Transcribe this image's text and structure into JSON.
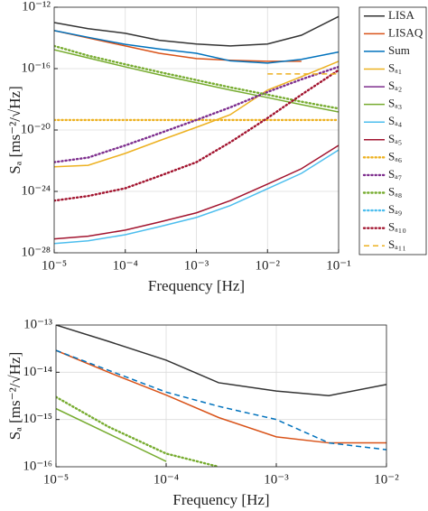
{
  "chart_data": [
    {
      "type": "line",
      "xlabel": "Frequency [Hz]",
      "ylabel": "Sₐ [ms⁻²/√Hz]",
      "xscale": "log",
      "yscale": "log",
      "grid": true,
      "legend": "outside right",
      "xlim": [
        1e-05,
        0.1
      ],
      "ylim": [
        1e-28,
        1e-12
      ],
      "xticks": [
        {
          "value": 1e-05,
          "label": "10⁻⁵"
        },
        {
          "value": 0.0001,
          "label": "10⁻⁴"
        },
        {
          "value": 0.001,
          "label": "10⁻³"
        },
        {
          "value": 0.01,
          "label": "10⁻²"
        },
        {
          "value": 0.1,
          "label": "10⁻¹"
        }
      ],
      "yticks": [
        {
          "value": 1e-28,
          "label": "10⁻²⁸"
        },
        {
          "value": 1e-24,
          "label": "10⁻²⁴"
        },
        {
          "value": 1e-20,
          "label": "10⁻²⁰"
        },
        {
          "value": 1e-16,
          "label": "10⁻¹⁶"
        },
        {
          "value": 1e-12,
          "label": "10⁻¹²"
        }
      ],
      "x": [
        1e-05,
        3e-05,
        0.0001,
        0.0003,
        0.001,
        0.003,
        0.01,
        0.03,
        0.1
      ],
      "series": [
        {
          "name": "LISA",
          "color": "#333333",
          "dash": "solid",
          "values": [
            1e-13,
            4e-14,
            2e-14,
            7e-15,
            4e-15,
            3e-15,
            4e-15,
            1.5e-14,
            2.5e-13
          ]
        },
        {
          "name": "LISAQ",
          "color": "#d95319",
          "dash": "solid",
          "values": [
            3e-14,
            1e-14,
            3e-15,
            1e-15,
            4.5e-16,
            3.5e-16,
            3e-16,
            3e-16,
            null
          ]
        },
        {
          "name": "Sum",
          "color": "#0072bd",
          "dash": "solid",
          "values": [
            3e-14,
            1.1e-14,
            3.8e-15,
            1.9e-15,
            1e-15,
            3.2e-16,
            2.3e-16,
            4e-16,
            1.2e-15
          ]
        },
        {
          "name": "Sₐ₁",
          "color": "#edb120",
          "dash": "solid",
          "values": [
            4e-23,
            5e-23,
            3e-22,
            2e-21,
            1.5e-20,
            1e-19,
            4e-18,
            3e-17,
            3e-16
          ]
        },
        {
          "name": "Sₐ₂",
          "color": "#7e2f8e",
          "dash": "solid",
          "values": [
            null,
            null,
            null,
            null,
            null,
            null,
            null,
            null,
            null
          ]
        },
        {
          "name": "Sₐ₃",
          "color": "#77ac30",
          "dash": "solid",
          "values": [
            1.7e-15,
            5e-16,
            1.3e-16,
            4e-17,
            1.2e-17,
            4e-18,
            1.3e-18,
            4.5e-19,
            1.5e-19
          ]
        },
        {
          "name": "Sₐ₄",
          "color": "#4dbeee",
          "dash": "solid",
          "values": [
            4e-28,
            6e-28,
            1.5e-27,
            5e-27,
            2e-26,
            1.2e-25,
            1.5e-24,
            1.5e-23,
            5e-22
          ]
        },
        {
          "name": "Sₐ₅",
          "color": "#a2142f",
          "dash": "solid",
          "values": [
            8e-28,
            1.2e-27,
            3e-27,
            1e-26,
            4e-26,
            2.5e-25,
            3e-24,
            3e-23,
            1e-21
          ]
        },
        {
          "name": "Sₐ₆",
          "color": "#edb120",
          "dash": "dotted",
          "values": [
            4.5e-20,
            4.5e-20,
            4.5e-20,
            4.5e-20,
            4.5e-20,
            4.5e-20,
            4.5e-20,
            4.5e-20,
            4.5e-20
          ]
        },
        {
          "name": "Sₐ₇",
          "color": "#7e2f8e",
          "dash": "dotted",
          "values": [
            8e-23,
            1.6e-22,
            1e-21,
            6e-21,
            4.5e-20,
            3e-19,
            3e-18,
            2e-17,
            1.3e-16
          ]
        },
        {
          "name": "Sₐ₈",
          "color": "#77ac30",
          "dash": "dotted",
          "values": [
            3e-15,
            7e-16,
            1.9e-16,
            6e-17,
            1.8e-17,
            6e-18,
            2e-18,
            7e-19,
            2.5e-19
          ]
        },
        {
          "name": "Sₐ₉",
          "color": "#4dbeee",
          "dash": "dotted",
          "values": [
            null,
            null,
            null,
            null,
            null,
            null,
            null,
            null,
            null
          ]
        },
        {
          "name": "Sₐ₁₀",
          "color": "#a2142f",
          "dash": "dotted",
          "values": [
            2.5e-25,
            5e-25,
            1.6e-24,
            1e-23,
            8e-23,
            1.6e-21,
            6e-20,
            2e-18,
            8e-17
          ]
        },
        {
          "name": "Sₐ₁₁",
          "color": "#edb120",
          "dash": "dashed",
          "values": [
            null,
            null,
            null,
            null,
            null,
            null,
            4.5e-17,
            4.5e-17,
            4.5e-17
          ]
        }
      ]
    },
    {
      "type": "line",
      "xlabel": "Frequency [Hz]",
      "ylabel": "Sₐ [ms⁻²/√Hz]",
      "xscale": "log",
      "yscale": "log",
      "grid": true,
      "xlim": [
        1e-05,
        0.01
      ],
      "ylim": [
        1e-16,
        1e-13
      ],
      "xticks": [
        {
          "value": 1e-05,
          "label": "10⁻⁵"
        },
        {
          "value": 0.0001,
          "label": "10⁻⁴"
        },
        {
          "value": 0.001,
          "label": "10⁻³"
        },
        {
          "value": 0.01,
          "label": "10⁻²"
        }
      ],
      "yticks": [
        {
          "value": 1e-16,
          "label": "10⁻¹⁶"
        },
        {
          "value": 1e-15,
          "label": "10⁻¹⁵"
        },
        {
          "value": 1e-14,
          "label": "10⁻¹⁴"
        },
        {
          "value": 1e-13,
          "label": "10⁻¹³"
        }
      ],
      "x": [
        1e-05,
        3e-05,
        0.0001,
        0.0003,
        0.001,
        0.003,
        0.01
      ],
      "series": [
        {
          "color": "#333333",
          "dash": "solid",
          "values": [
            1e-13,
            4.5e-14,
            1.8e-14,
            6e-15,
            4e-15,
            3.2e-15,
            5.5e-15
          ]
        },
        {
          "color": "#d95319",
          "dash": "solid",
          "values": [
            2.9e-14,
            1e-14,
            3.3e-15,
            1.1e-15,
            4.3e-16,
            3.2e-16,
            3.2e-16
          ]
        },
        {
          "color": "#0072bd",
          "dash": "dashed",
          "values": [
            2.9e-14,
            1.1e-14,
            3.8e-15,
            1.9e-15,
            1e-15,
            3.2e-16,
            2.3e-16
          ]
        },
        {
          "color": "#77ac30",
          "dash": "solid",
          "values": [
            1.7e-15,
            5e-16,
            1.3e-16,
            null,
            null,
            null,
            null
          ]
        },
        {
          "color": "#77ac30",
          "dash": "dotted",
          "values": [
            3e-15,
            7e-16,
            1.9e-16,
            1e-16,
            null,
            null,
            null
          ]
        }
      ]
    }
  ]
}
